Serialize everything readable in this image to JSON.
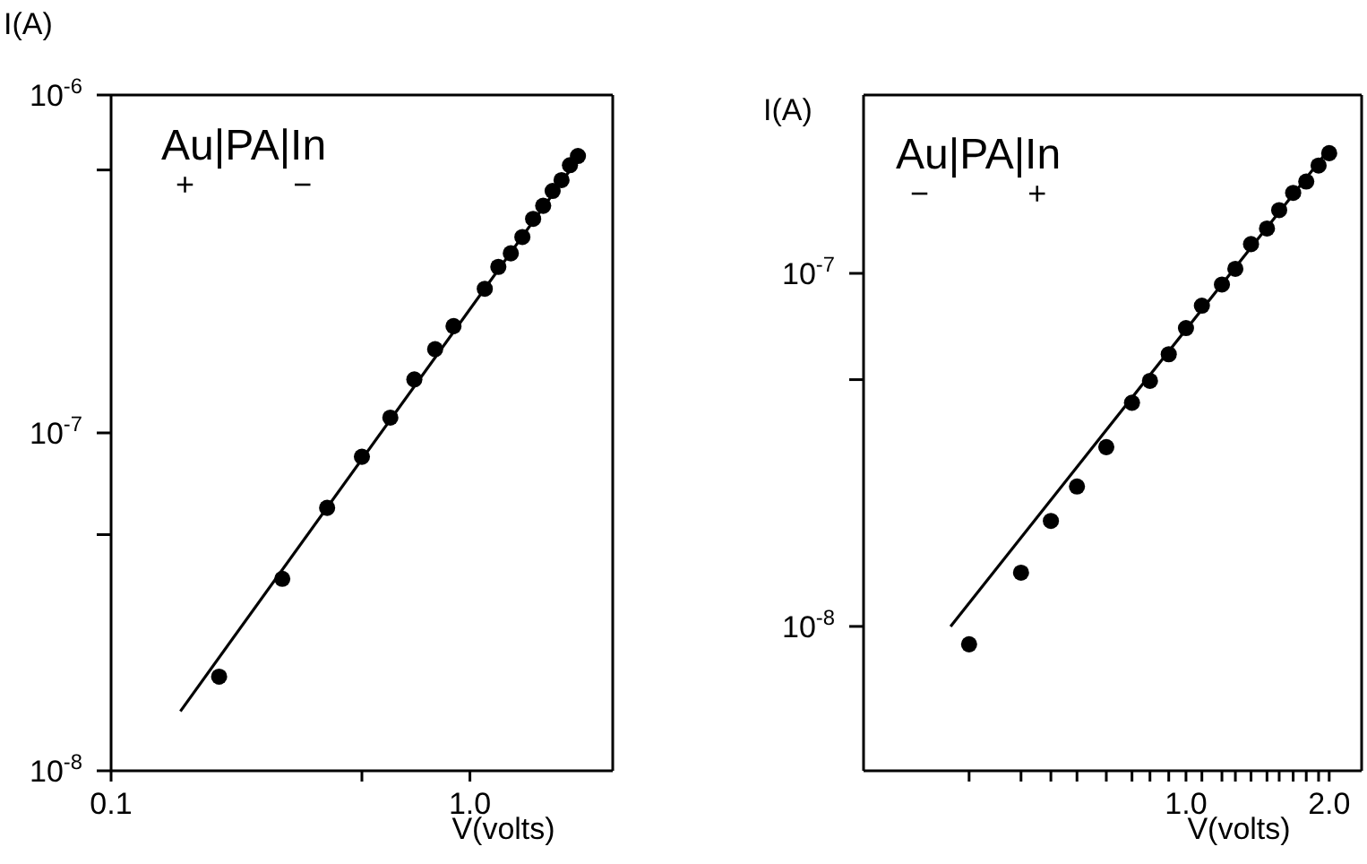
{
  "chart_data": [
    {
      "type": "scatter",
      "xlabel": "V(volts)",
      "ylabel": "I(A)",
      "log": "xy",
      "annotations": [
        "Au|PA|In",
        "+",
        "−"
      ],
      "xlim": [
        0.1,
        2.5
      ],
      "ylim": [
        1e-08,
        1e-06
      ],
      "xticks": [
        {
          "value": 0.1,
          "label": "0.1"
        },
        {
          "value": 0.5,
          "label": null
        },
        {
          "value": 1,
          "label": "1.0"
        }
      ],
      "yticks": [
        {
          "value": 1e-08,
          "label": "10$^{-8}$"
        },
        {
          "value": 5e-08,
          "label": null
        },
        {
          "value": 1e-07,
          "label": "10$^{-7}$"
        },
        {
          "value": 6e-07,
          "label": null
        },
        {
          "value": 1e-06,
          "label": "10$^{-6}$"
        }
      ],
      "series": [
        {
          "marker": "circle",
          "color": "#000000",
          "x": [
            0.2,
            0.3,
            0.4,
            0.5,
            0.6,
            0.7,
            0.8,
            0.9,
            1.1,
            1.2,
            1.3,
            1.4,
            1.5,
            1.6,
            1.7,
            1.8,
            1.9,
            2.0
          ],
          "values": [
            1.9e-08,
            3.7e-08,
            6e-08,
            8.5e-08,
            1.11e-07,
            1.44e-07,
            1.77e-07,
            2.07e-07,
            2.67e-07,
            3.1e-07,
            3.4e-07,
            3.8e-07,
            4.3e-07,
            4.7e-07,
            5.2e-07,
            5.6e-07,
            6.2e-07,
            6.6e-07
          ]
        },
        {
          "type": "line",
          "color": "#000000",
          "x": [
            0.156,
            2.03
          ],
          "values": [
            1.5e-08,
            6.6e-07
          ]
        }
      ]
    },
    {
      "type": "scatter",
      "xlabel": "V(volts)",
      "ylabel": "I(A)",
      "log": "xy",
      "annotations": [
        "Au|PA|In",
        "−",
        "+"
      ],
      "xlim": [
        0.21,
        2.34
      ],
      "ylim": [
        3.9e-09,
        3.2e-07
      ],
      "xticks": [
        {
          "value": 0.35,
          "label": null
        },
        {
          "value": 0.45,
          "label": null
        },
        {
          "value": 0.52,
          "label": null
        },
        {
          "value": 0.59,
          "label": null
        },
        {
          "value": 0.68,
          "label": null
        },
        {
          "value": 0.77,
          "label": null
        },
        {
          "value": 0.84,
          "label": null
        },
        {
          "value": 0.92,
          "label": null
        },
        {
          "value": 1,
          "label": "1.0"
        },
        {
          "value": 1.08,
          "label": null
        },
        {
          "value": 1.19,
          "label": null
        },
        {
          "value": 1.27,
          "label": null
        },
        {
          "value": 1.37,
          "label": null
        },
        {
          "value": 1.48,
          "label": null
        },
        {
          "value": 1.57,
          "label": null
        },
        {
          "value": 1.68,
          "label": null
        },
        {
          "value": 1.79,
          "label": null
        },
        {
          "value": 1.9,
          "label": null
        },
        {
          "value": 2,
          "label": "2.0"
        }
      ],
      "yticks": [
        {
          "value": 1e-08,
          "label": "10$^{-8}$"
        },
        {
          "value": 5e-08,
          "label": null
        },
        {
          "value": 1e-07,
          "label": "10$^{-7}$"
        }
      ],
      "series": [
        {
          "marker": "circle",
          "color": "#000000",
          "x": [
            0.35,
            0.45,
            0.52,
            0.59,
            0.68,
            0.77,
            0.84,
            0.92,
            1.0,
            1.08,
            1.19,
            1.27,
            1.37,
            1.48,
            1.57,
            1.68,
            1.79,
            1.9,
            2.0
          ],
          "values": [
            8.9e-09,
            1.42e-08,
            1.99e-08,
            2.49e-08,
            3.22e-08,
            4.3e-08,
            4.96e-08,
            5.9e-08,
            7e-08,
            8.1e-08,
            9.3e-08,
            1.03e-07,
            1.21e-07,
            1.34e-07,
            1.51e-07,
            1.69e-07,
            1.82e-07,
            2.02e-07,
            2.19e-07
          ]
        },
        {
          "type": "line",
          "color": "#000000",
          "x": [
            0.32,
            2.0
          ],
          "values": [
            1e-08,
            2.25e-07
          ]
        }
      ]
    }
  ]
}
